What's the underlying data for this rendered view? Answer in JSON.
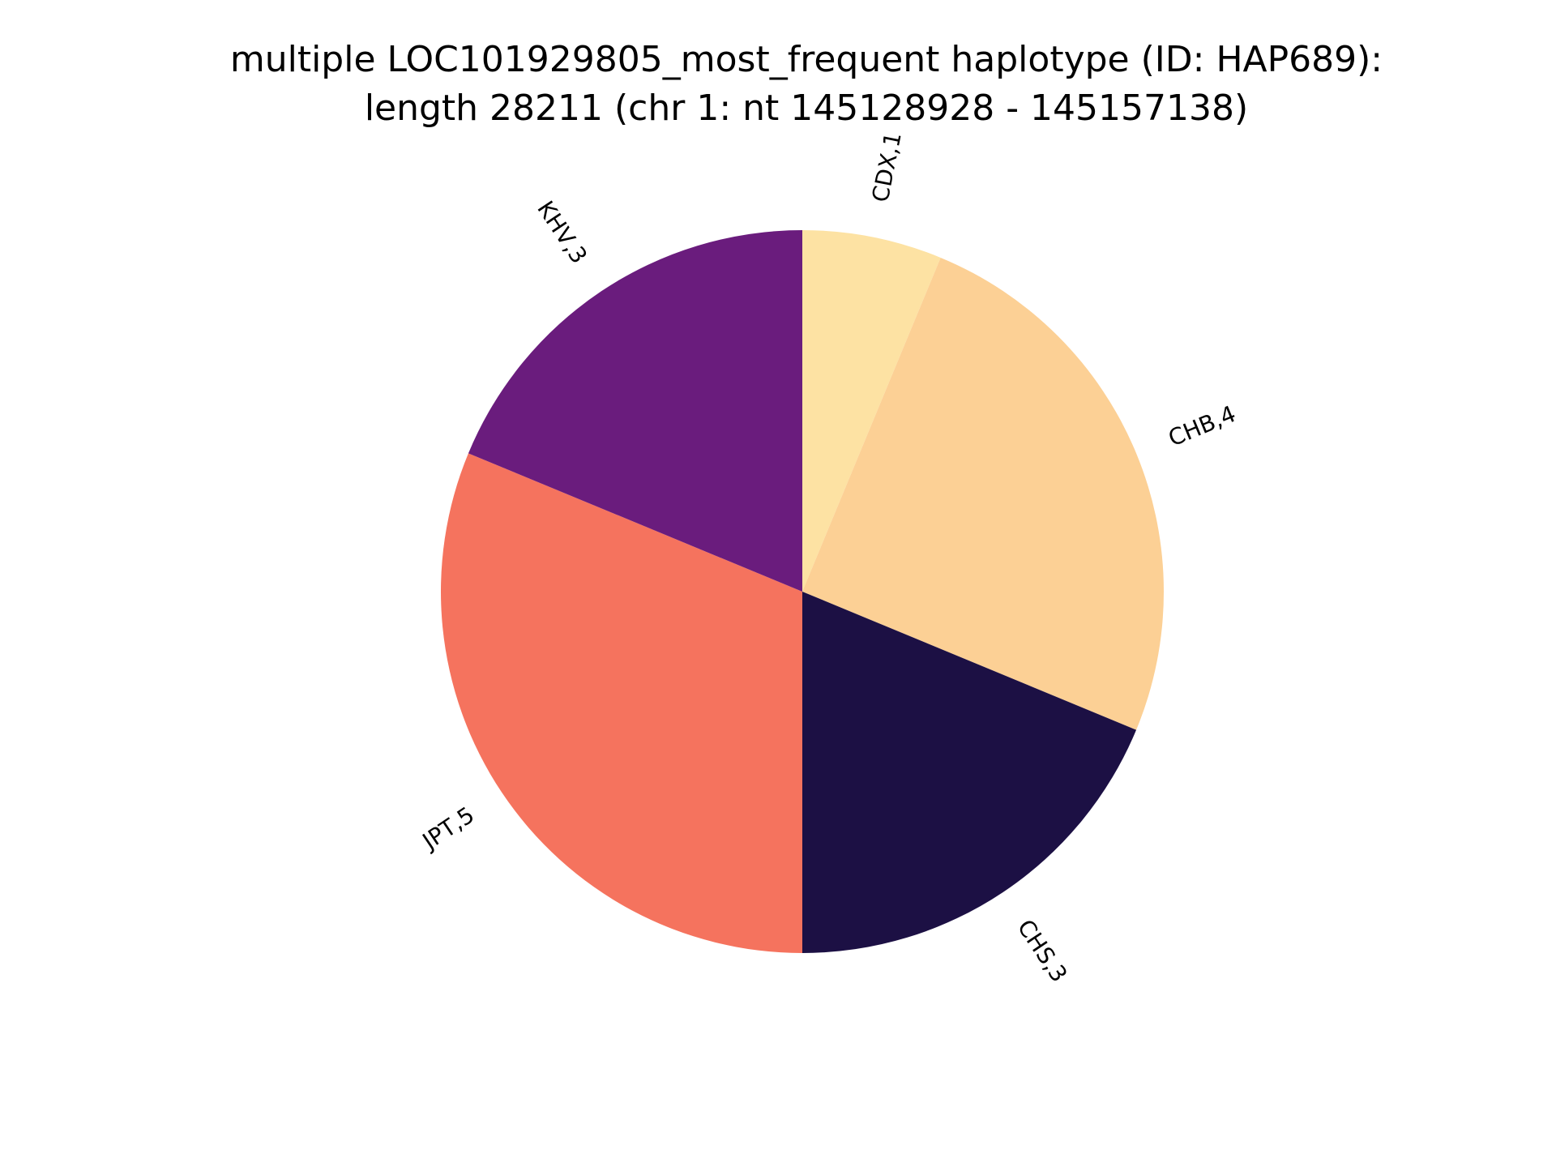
{
  "chart_data": {
    "type": "pie",
    "title": "multiple LOC101929805_most_frequent haplotype (ID: HAP689):\nlength 28211 (chr 1: nt 145128928 - 145157138)",
    "title_lines": [
      "multiple LOC101929805_most_frequent haplotype (ID: HAP689):",
      "length 28211 (chr 1: nt 145128928 - 145157138)"
    ],
    "start_angle_deg": 90,
    "direction": "clockwise",
    "legend": "none",
    "slices": [
      {
        "category": "CDX",
        "value": 1,
        "label": "CDX,1",
        "color": "#fde2a3"
      },
      {
        "category": "CHB",
        "value": 4,
        "label": "CHB,4",
        "color": "#fcd095"
      },
      {
        "category": "CHS",
        "value": 3,
        "label": "CHS,3",
        "color": "#1c1044"
      },
      {
        "category": "JPT",
        "value": 5,
        "label": "JPT,5",
        "color": "#f5735e"
      },
      {
        "category": "KHV",
        "value": 3,
        "label": "KHV,3",
        "color": "#6a1c7d"
      }
    ]
  }
}
